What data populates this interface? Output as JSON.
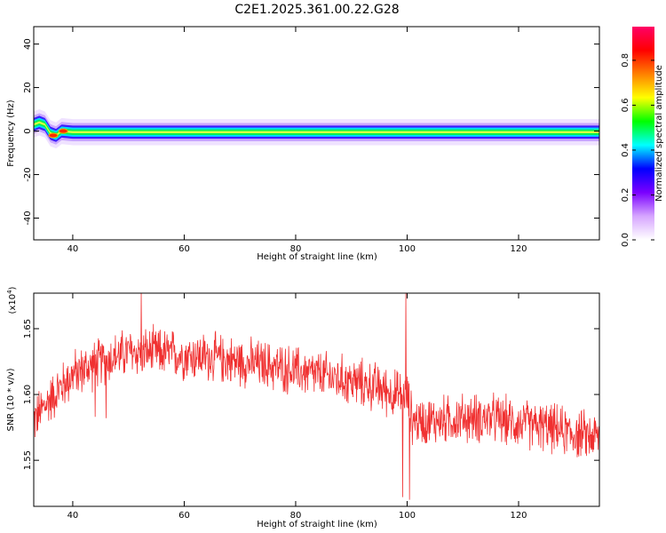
{
  "title": "C2E1.2025.361.00.22.G28",
  "chart_data": [
    {
      "type": "heatmap",
      "xlabel": "Height of straight line (km)",
      "ylabel": "Frequency (Hz)",
      "xlim": [
        33,
        134.5
      ],
      "ylim": [
        -50,
        48
      ],
      "xticks": [
        40,
        60,
        80,
        100,
        120
      ],
      "yticks": [
        40,
        20,
        0,
        -20,
        -40
      ],
      "ridge_center_hz": [
        [
          33,
          3
        ],
        [
          34,
          4
        ],
        [
          35,
          3
        ],
        [
          36,
          -1
        ],
        [
          37,
          -2
        ],
        [
          38,
          0
        ],
        [
          40,
          -0.5
        ],
        [
          60,
          -0.5
        ],
        [
          80,
          -0.5
        ],
        [
          100,
          -0.5
        ],
        [
          120,
          -0.5
        ],
        [
          134,
          -0.5
        ]
      ],
      "high_amplitude_points": [
        {
          "x": 36.5,
          "y": -2,
          "amplitude": 0.9
        },
        {
          "x": 38.3,
          "y": 0,
          "amplitude": 0.9
        }
      ],
      "colorbar": {
        "label": "Normalized spectral amplitude",
        "range": [
          0,
          0.95
        ],
        "ticks": [
          "0.0",
          "0.2",
          "0.4",
          "0.6",
          "0.8"
        ],
        "colors": [
          "#ffffff",
          "#d6a5ff",
          "#7a00ff",
          "#0000ff",
          "#00ffff",
          "#00ff00",
          "#ffff00",
          "#ff8000",
          "#ff0000",
          "#ff0066"
        ]
      }
    },
    {
      "type": "line",
      "xlabel": "Height of straight line (km)",
      "ylabel": "SNR (10 * v/v)",
      "multiplier": "(x10^4)",
      "xlim": [
        33,
        134.5
      ],
      "ylim": [
        1.515,
        1.677
      ],
      "xticks": [
        40,
        60,
        80,
        100,
        120
      ],
      "yticks": [
        1.55,
        1.6,
        1.65
      ],
      "color": "#f03030",
      "series_trend": [
        [
          33,
          1.58
        ],
        [
          36,
          1.597
        ],
        [
          40,
          1.615
        ],
        [
          45,
          1.625
        ],
        [
          50,
          1.632
        ],
        [
          55,
          1.632
        ],
        [
          60,
          1.63
        ],
        [
          65,
          1.628
        ],
        [
          70,
          1.625
        ],
        [
          75,
          1.622
        ],
        [
          80,
          1.618
        ],
        [
          85,
          1.614
        ],
        [
          90,
          1.61
        ],
        [
          95,
          1.605
        ],
        [
          98,
          1.6
        ],
        [
          100,
          1.598
        ],
        [
          101,
          1.58
        ],
        [
          105,
          1.58
        ],
        [
          110,
          1.582
        ],
        [
          115,
          1.582
        ],
        [
          120,
          1.578
        ],
        [
          125,
          1.575
        ],
        [
          130,
          1.57
        ],
        [
          134,
          1.568
        ]
      ],
      "noise_amplitude": 0.03,
      "spikes": [
        {
          "x": 44,
          "y": 1.583
        },
        {
          "x": 46,
          "y": 1.582
        },
        {
          "x": 52.3,
          "y": 1.677
        },
        {
          "x": 99.2,
          "y": 1.522
        },
        {
          "x": 99.8,
          "y": 1.677
        },
        {
          "x": 100.4,
          "y": 1.52
        }
      ]
    }
  ]
}
